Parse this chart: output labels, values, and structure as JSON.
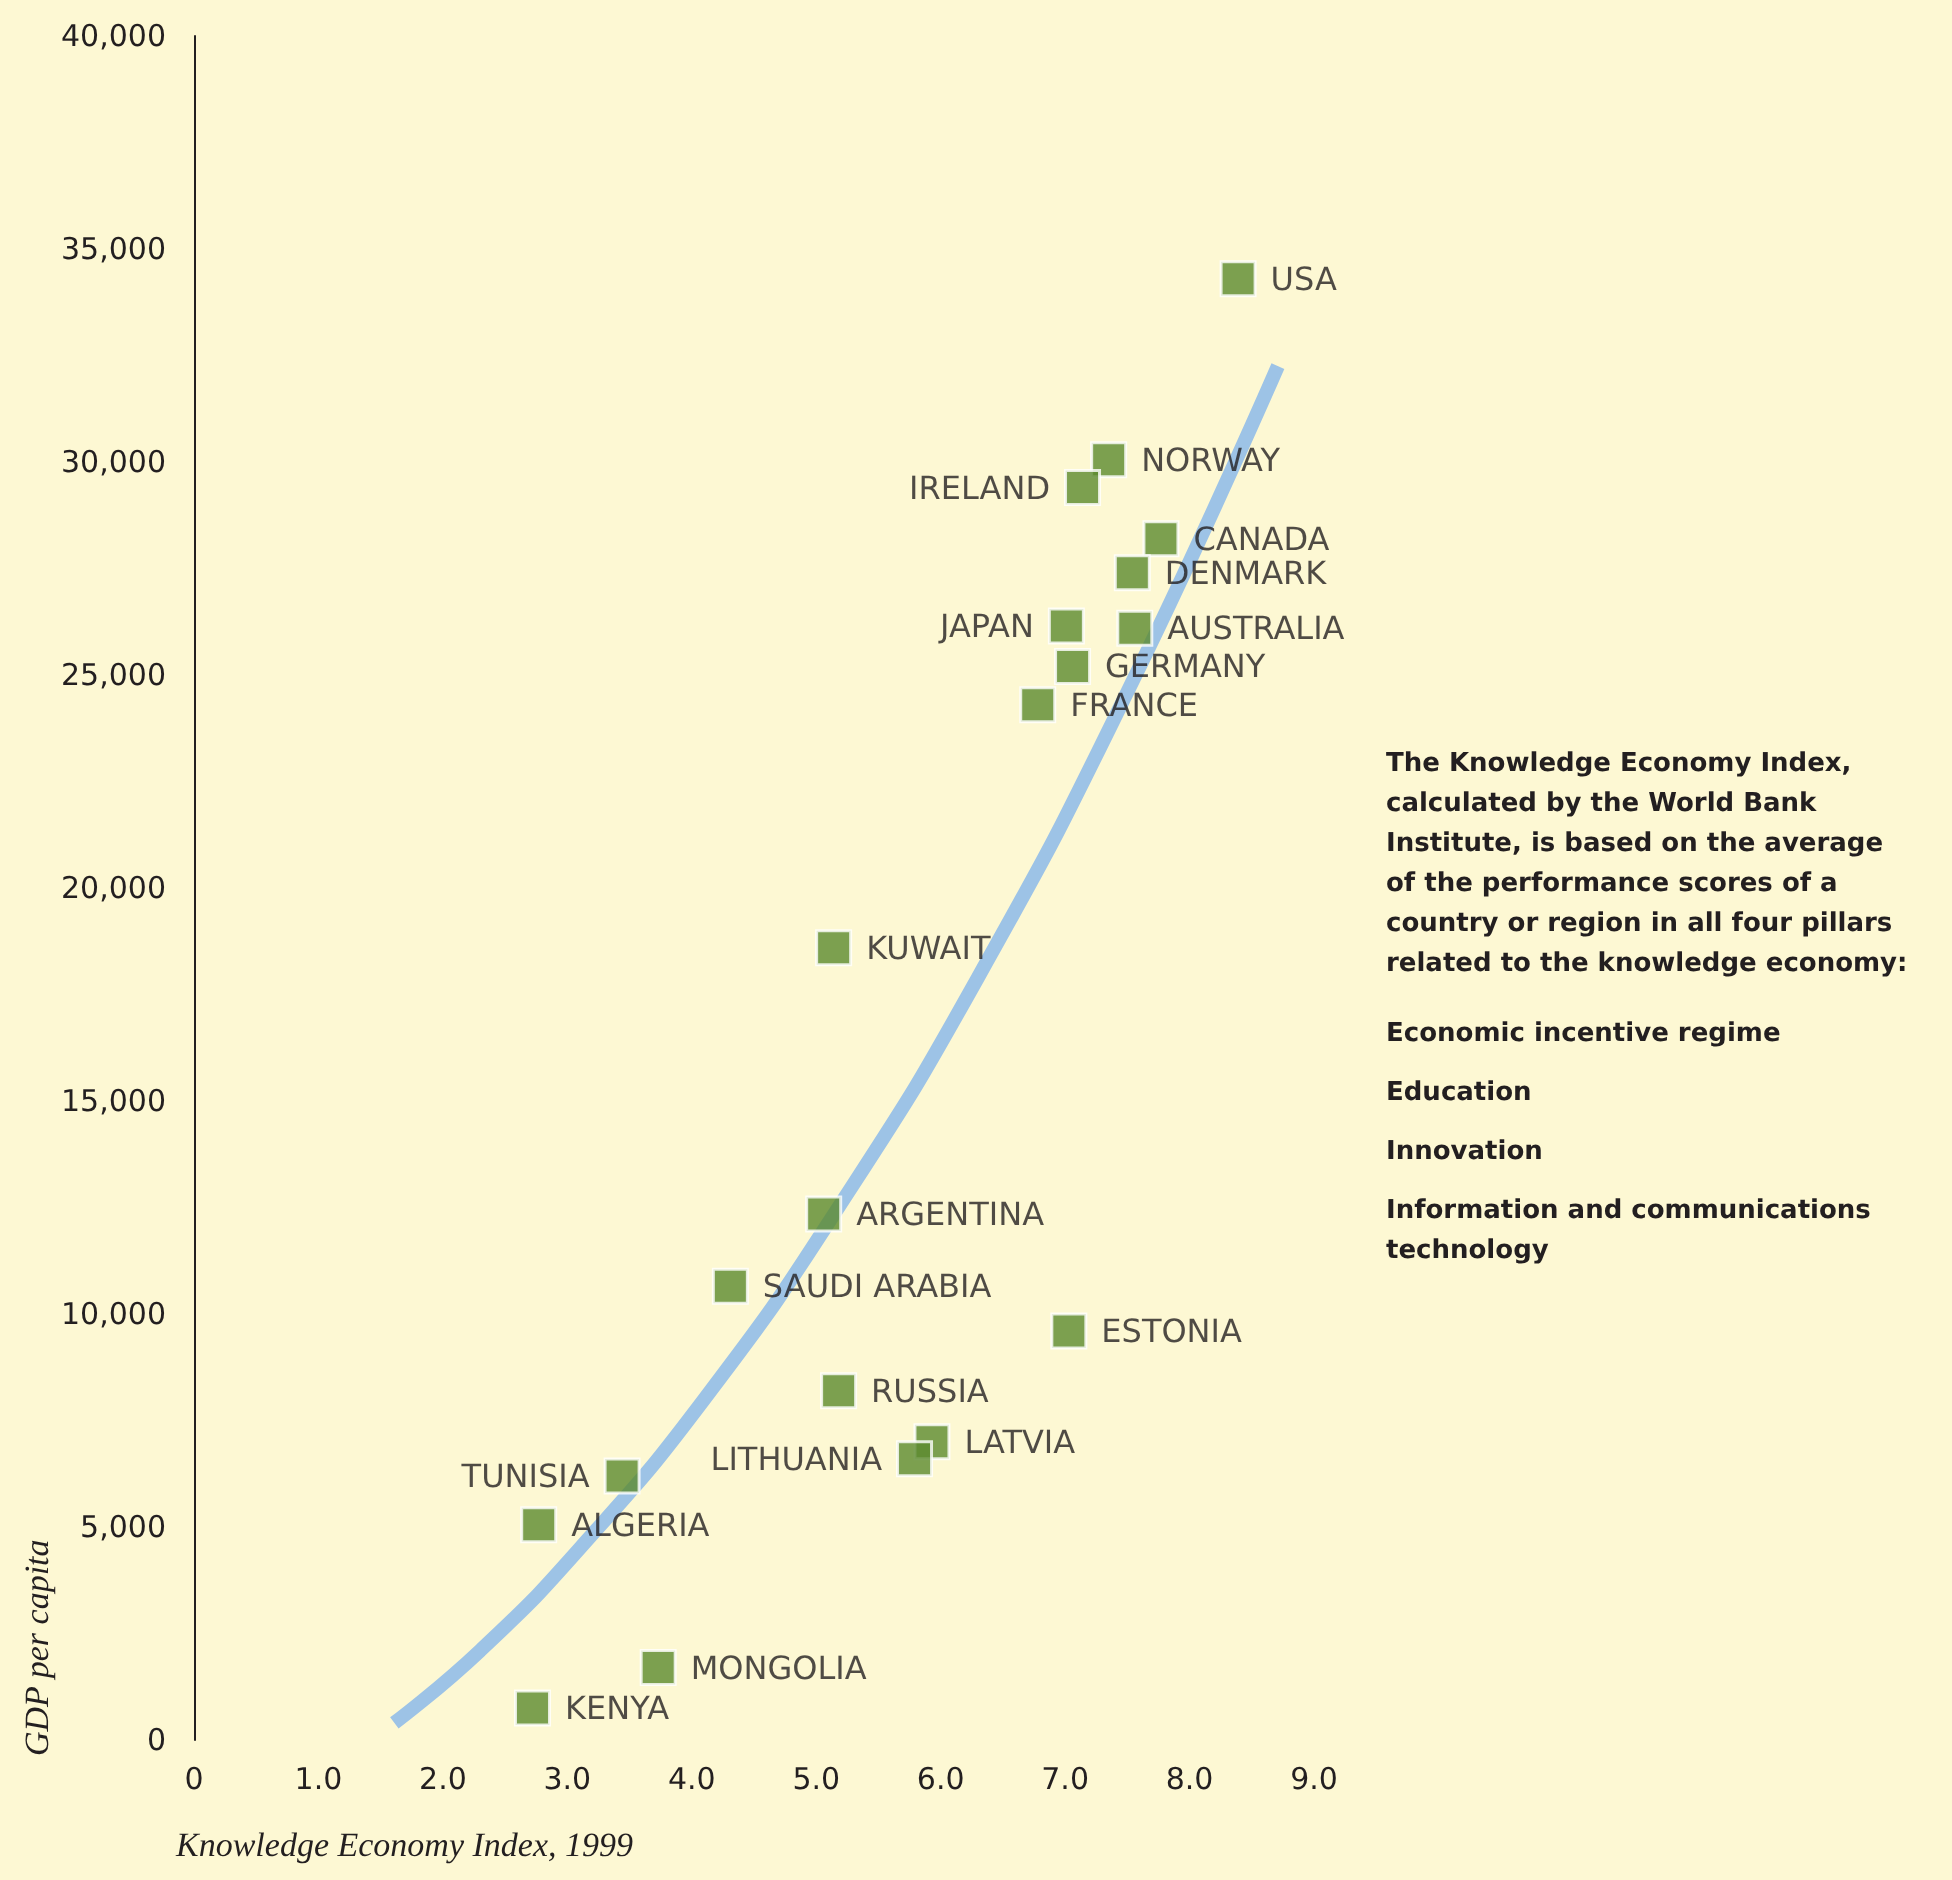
{
  "chart_data": {
    "type": "scatter",
    "xlabel": "Knowledge Economy Index, 1999",
    "ylabel": "GDP per capita",
    "xlim": [
      0,
      9
    ],
    "xticks": [
      0,
      {
        "value": 1,
        "label": "1.0"
      },
      {
        "value": 2,
        "label": "2.0"
      },
      {
        "value": 3,
        "label": "3.0"
      },
      {
        "value": 4,
        "label": "4.0"
      },
      {
        "value": 5,
        "label": "5.0"
      },
      {
        "value": 6,
        "label": "6.0"
      },
      {
        "value": 7,
        "label": "7.0"
      },
      {
        "value": 8,
        "label": "8.0"
      },
      {
        "value": 9,
        "label": "9.0"
      }
    ],
    "ylim": [
      0,
      40000
    ],
    "yticks": [
      0,
      {
        "value": 5000,
        "label": "5,000"
      },
      {
        "value": 10000,
        "label": "10,000"
      },
      {
        "value": 15000,
        "label": "15,000"
      },
      {
        "value": 20000,
        "label": "20,000"
      },
      {
        "value": 25000,
        "label": "25,000"
      },
      {
        "value": 30000,
        "label": "30,000"
      },
      {
        "value": 35000,
        "label": "35,000"
      },
      {
        "value": 40000,
        "label": "40,000"
      }
    ],
    "grid": false,
    "marker": "square",
    "series": [
      {
        "color": "#5b8a2e",
        "x": [
          8.39,
          7.35,
          7.14,
          7.77,
          7.54,
          7.01,
          7.56,
          7.06,
          6.78,
          5.14,
          5.06,
          4.31,
          7.03,
          5.18,
          5.93,
          5.79,
          3.44,
          2.77,
          3.73,
          2.72
        ],
        "values": [
          34300,
          30050,
          29400,
          28200,
          27400,
          26150,
          26100,
          25200,
          24300,
          18600,
          12350,
          10650,
          9600,
          8200,
          7000,
          6600,
          6200,
          5050,
          1700,
          750
        ],
        "value_labels": [
          "USA",
          "NORWAY",
          "IRELAND",
          "CANADA",
          "DENMARK",
          "JAPAN",
          "AUSTRALIA",
          "GERMANY",
          "FRANCE",
          "KUWAIT",
          "ARGENTINA",
          "SAUDI ARABIA",
          "ESTONIA",
          "RUSSIA",
          "LATVIA",
          "LITHUANIA",
          "TUNISIA",
          "ALGERIA",
          "MONGOLIA",
          "KENYA"
        ]
      },
      {
        "type": "line",
        "color": "#9dc3e6",
        "marker": "none",
        "x": [
          1.61,
          2.3,
          3.1,
          4.1,
          5.2,
          6.3,
          7.5,
          8.71
        ],
        "values": [
          400,
          2100,
          4500,
          8000,
          12600,
          17900,
          24600,
          32250
        ]
      }
    ],
    "annotations": [
      "The Knowledge Economy Index, calculated by the World Bank Institute, is based on the average of the performance scores of a country or region in all four pillars related to the knowledge economy:",
      "Economic incentive regime",
      "Education",
      "Innovation",
      "Information and communications technology"
    ]
  }
}
